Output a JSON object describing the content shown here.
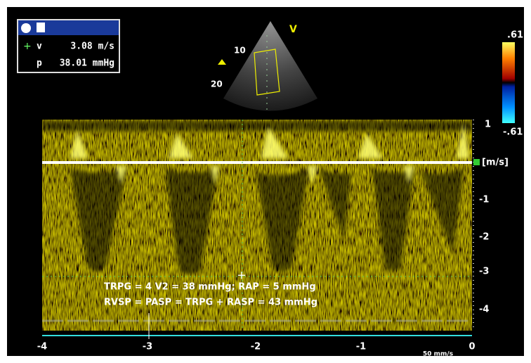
{
  "readout": {
    "v_label": "v",
    "v_value": "3.08 m/s",
    "p_label": "p",
    "p_value": "38.01 mmHg"
  },
  "sector": {
    "marker": "V",
    "depth_labels": [
      "10",
      "20"
    ]
  },
  "color_scale": {
    "max": ".61",
    "min": "-.61"
  },
  "velocity_axis": {
    "ticks": [
      "1",
      "[m/s]",
      "-1",
      "-2",
      "-3",
      "-4"
    ]
  },
  "time_axis": {
    "ticks": [
      "-4",
      "-3",
      "-2",
      "-1",
      "0"
    ],
    "sweep": "50 mm/s"
  },
  "annotations": [
    "TRPG = 4 V2 = 38 mmHg; RAP = 5 mmHg",
    "RVSP = PASP = TRPG + RASP = 43 mmHg"
  ]
}
